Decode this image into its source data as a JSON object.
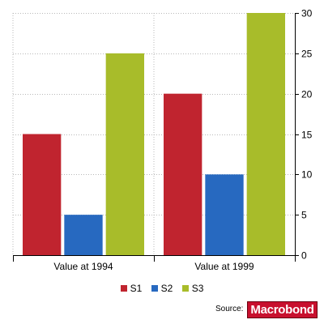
{
  "chart_data": {
    "type": "bar",
    "categories": [
      "Value at 1994",
      "Value at 1999"
    ],
    "series": [
      {
        "name": "S1",
        "values": [
          15,
          20
        ],
        "color": "#c0242f"
      },
      {
        "name": "S2",
        "values": [
          5,
          10
        ],
        "color": "#2769c0"
      },
      {
        "name": "S3",
        "values": [
          25,
          30
        ],
        "color": "#a8bc2a"
      }
    ],
    "ylim": [
      0,
      30
    ],
    "yticks": [
      "0",
      "5",
      "10",
      "15",
      "20",
      "25",
      "30"
    ],
    "y_axis_side": "right",
    "grid": true,
    "legend_position": "bottom"
  },
  "legend": {
    "items": [
      "S1",
      "S2",
      "S3"
    ]
  },
  "footer": {
    "source_label": "Source:",
    "logo_text": "Macrobond"
  }
}
